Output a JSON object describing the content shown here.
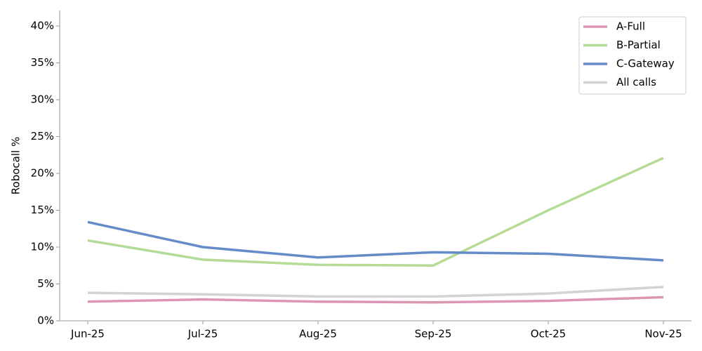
{
  "chart_data": {
    "type": "line",
    "y_label": "Robocall %",
    "categories": [
      "Jun-25",
      "Jul-25",
      "Aug-25",
      "Sep-25",
      "Oct-25",
      "Nov-25"
    ],
    "series": [
      {
        "name": "A-Full",
        "color": "#dc96b4",
        "values": [
          2.6,
          2.9,
          2.6,
          2.5,
          2.7,
          3.2
        ]
      },
      {
        "name": "B-Partial",
        "color": "#b5dc96",
        "values": [
          10.9,
          8.3,
          7.6,
          7.5,
          15.0,
          22.1
        ]
      },
      {
        "name": "C-Gateway",
        "color": "#648cc8",
        "values": [
          13.4,
          10.0,
          8.6,
          9.3,
          9.1,
          8.2
        ]
      },
      {
        "name": "All calls",
        "color": "#d3d3d3",
        "values": [
          3.8,
          3.6,
          3.3,
          3.3,
          3.7,
          4.6
        ]
      }
    ],
    "ylim": [
      0,
      42.1
    ],
    "yticks": [
      {
        "value": 0,
        "label": "0%"
      },
      {
        "value": 5,
        "label": "5%"
      },
      {
        "value": 10,
        "label": "10%"
      },
      {
        "value": 15,
        "label": "15%"
      },
      {
        "value": 20,
        "label": "20%"
      },
      {
        "value": 25,
        "label": "25%"
      },
      {
        "value": 30,
        "label": "30%"
      },
      {
        "value": 35,
        "label": "35%"
      },
      {
        "value": 40,
        "label": "40%"
      }
    ],
    "legend": "upper right"
  }
}
